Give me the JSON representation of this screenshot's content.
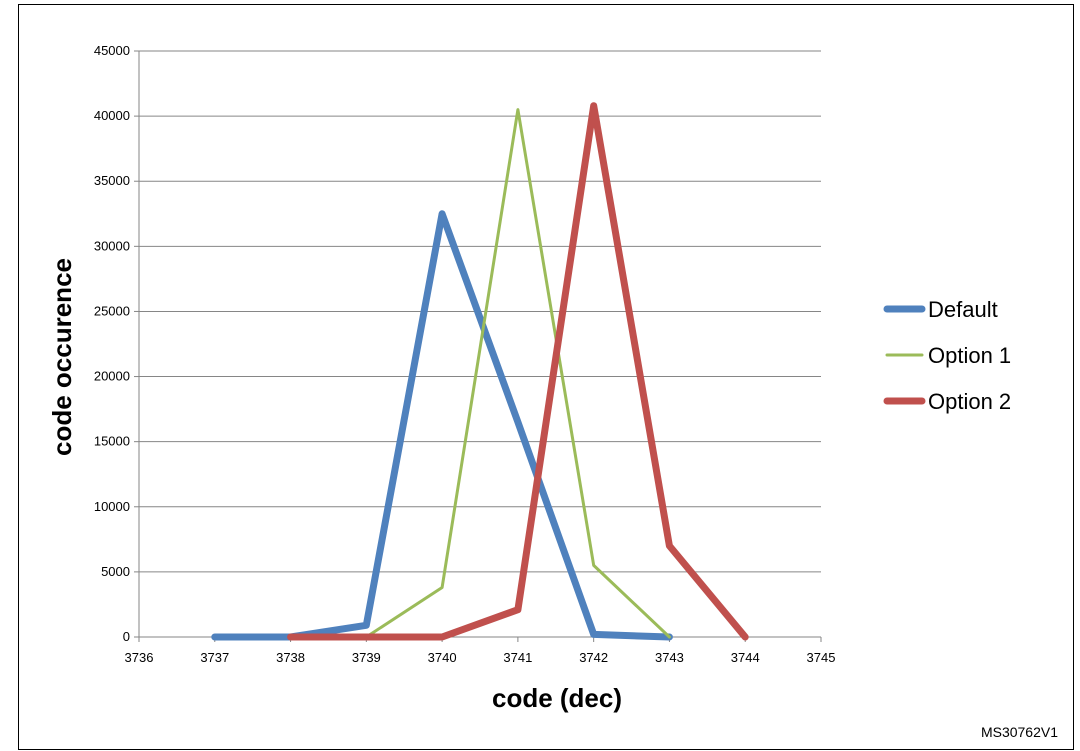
{
  "chart_data": {
    "type": "line",
    "title": "",
    "xlabel": "code (dec)",
    "ylabel": "code occurence",
    "xlim": [
      3736,
      3745
    ],
    "ylim": [
      0,
      45000
    ],
    "x_ticks": [
      3736,
      3737,
      3738,
      3739,
      3740,
      3741,
      3742,
      3743,
      3744,
      3745
    ],
    "y_ticks": [
      0,
      5000,
      10000,
      15000,
      20000,
      25000,
      30000,
      35000,
      40000,
      45000
    ],
    "grid": "horizontal",
    "legend_position": "right",
    "series": [
      {
        "name": "Default",
        "color": "#4F81BD",
        "line_weight": "thick",
        "x": [
          3737,
          3738,
          3739,
          3740,
          3741,
          3742,
          3743
        ],
        "y": [
          0,
          0,
          900,
          32500,
          16500,
          200,
          0
        ]
      },
      {
        "name": "Option 1",
        "color": "#9BBB59",
        "line_weight": "thin",
        "x": [
          3739,
          3740,
          3741,
          3742,
          3743
        ],
        "y": [
          0,
          3800,
          40500,
          5500,
          0
        ]
      },
      {
        "name": "Option 2",
        "color": "#C0504D",
        "line_weight": "thick",
        "x": [
          3738,
          3739,
          3740,
          3741,
          3742,
          3743,
          3744
        ],
        "y": [
          0,
          0,
          0,
          2100,
          40800,
          7000,
          0
        ]
      }
    ]
  },
  "reference_label": "MS30762V1"
}
